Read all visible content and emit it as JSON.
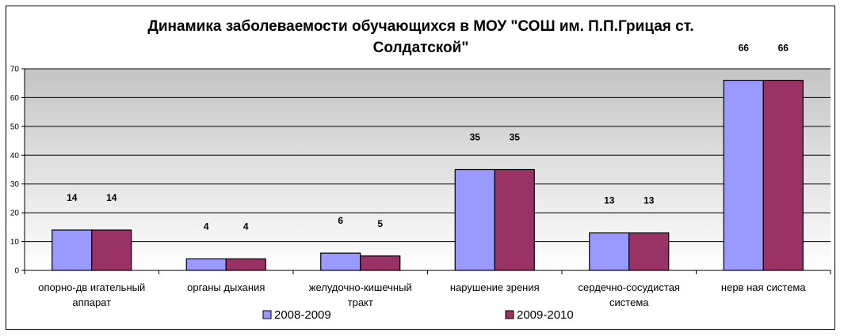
{
  "chart_data": {
    "type": "bar",
    "title_line1": "Динамика заболеваемости обучающихся в МОУ \"СОШ им. П.П.Грицая ст.",
    "title_line2": "Солдатской\"",
    "categories": [
      [
        "опорно-дв игательный",
        "аппарат"
      ],
      [
        "органы дыхания"
      ],
      [
        "желудочно-кишечный",
        "тракт"
      ],
      [
        "нарушение зрения"
      ],
      [
        "сердечно-сосудистая",
        "система"
      ],
      [
        "нерв ная система"
      ]
    ],
    "series": [
      {
        "name": "2008-2009",
        "color": "#9999FF",
        "values": [
          14,
          4,
          6,
          35,
          13,
          66
        ]
      },
      {
        "name": "2009-2010",
        "color": "#993366",
        "values": [
          14,
          4,
          5,
          35,
          13,
          66
        ]
      }
    ],
    "ylim": [
      0,
      70
    ],
    "yticks": [
      "0",
      "10",
      "20",
      "30",
      "40",
      "50",
      "60",
      "70"
    ],
    "grid": true,
    "legend_position": "bottom"
  }
}
